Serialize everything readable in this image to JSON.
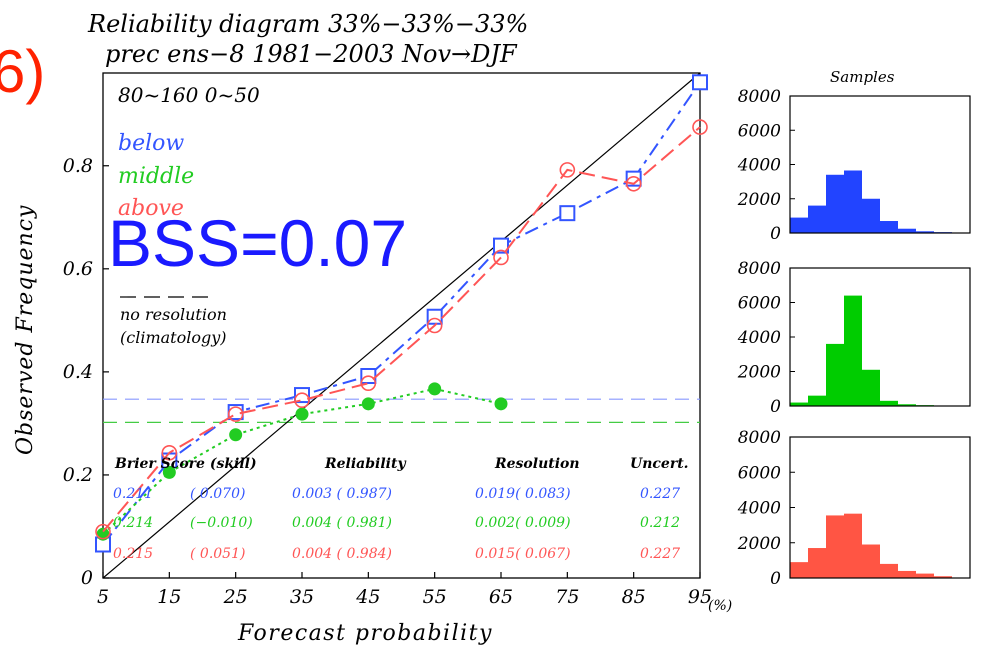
{
  "figure_label": "6)",
  "title_line1": "Reliability diagram   33%−33%−33%",
  "title_line2": "prec ens−8 1981−2003   Nov→DJF",
  "region": "80~160  0~50",
  "bss_label": "BSS=0.07",
  "no_resolution_line1": "no resolution",
  "no_resolution_line2": "(climatology)",
  "colors": {
    "below": "#3355ff",
    "middle": "#22cc22",
    "above": "#ff5555"
  },
  "score_headers": {
    "brier": "Brier Score (skill)",
    "reliability": "Reliability",
    "resolution": "Resolution",
    "uncert": "Uncert."
  },
  "score_rows": [
    {
      "name": "below",
      "brier": "0.211",
      "skill": "( 0.070)",
      "reliability": "0.003 ( 0.987)",
      "resolution": "0.019( 0.083)",
      "uncert": "0.227"
    },
    {
      "name": "middle",
      "brier": "0.214",
      "skill": "(−0.010)",
      "reliability": "0.004 ( 0.981)",
      "resolution": "0.002( 0.009)",
      "uncert": "0.212"
    },
    {
      "name": "above",
      "brier": "0.215",
      "skill": "( 0.051)",
      "reliability": "0.004 ( 0.984)",
      "resolution": "0.015( 0.067)",
      "uncert": "0.227"
    }
  ],
  "samples_title": "Samples",
  "chart_data": [
    {
      "type": "line",
      "title": "Reliability diagram 33%−33%−33%",
      "xlabel": "Forecast probability",
      "ylabel": "Observed Frequency",
      "x_unit_label": "(%)",
      "xlim": [
        5,
        95
      ],
      "ylim": [
        0,
        0.98
      ],
      "x_ticks": [
        5,
        15,
        25,
        35,
        45,
        55,
        65,
        75,
        85,
        95
      ],
      "y_ticks": [
        0,
        0.2,
        0.4,
        0.6,
        0.8
      ],
      "y_tick_labels": [
        "0",
        "0.2",
        "0.4",
        "0.6",
        "0.8"
      ],
      "climatology": {
        "below": 0.347,
        "middle": 0.302
      },
      "series": [
        {
          "name": "below",
          "color": "#3355ff",
          "marker": "square",
          "x": [
            5,
            15,
            25,
            35,
            45,
            55,
            65,
            75,
            85,
            95
          ],
          "y": [
            0.065,
            0.228,
            0.322,
            0.355,
            0.392,
            0.507,
            0.645,
            0.708,
            0.775,
            0.962
          ]
        },
        {
          "name": "middle",
          "color": "#22cc22",
          "marker": "dot",
          "x": [
            5,
            15,
            25,
            35,
            45,
            55,
            65
          ],
          "y": [
            0.085,
            0.205,
            0.278,
            0.318,
            0.338,
            0.367,
            0.338
          ]
        },
        {
          "name": "above",
          "color": "#ff5555",
          "marker": "circle",
          "x": [
            5,
            15,
            25,
            35,
            45,
            55,
            65,
            75,
            85,
            95
          ],
          "y": [
            0.09,
            0.243,
            0.318,
            0.345,
            0.378,
            0.49,
            0.622,
            0.792,
            0.765,
            0.875
          ]
        }
      ]
    },
    {
      "type": "bar",
      "title": "Samples",
      "color": "#2244ff",
      "ylim": [
        0,
        8000
      ],
      "y_ticks": [
        0,
        2000,
        4000,
        6000,
        8000
      ],
      "values": [
        900,
        1600,
        3400,
        3650,
        2000,
        700,
        250,
        100,
        50,
        10
      ]
    },
    {
      "type": "bar",
      "color": "#00cc00",
      "ylim": [
        0,
        8000
      ],
      "y_ticks": [
        0,
        2000,
        4000,
        6000,
        8000
      ],
      "values": [
        200,
        600,
        3600,
        6400,
        2100,
        300,
        100,
        50,
        0,
        0
      ]
    },
    {
      "type": "bar",
      "color": "#ff5544",
      "ylim": [
        0,
        8000
      ],
      "y_ticks": [
        0,
        2000,
        4000,
        6000,
        8000
      ],
      "values": [
        900,
        1700,
        3550,
        3650,
        1900,
        800,
        400,
        250,
        100,
        0
      ]
    }
  ]
}
